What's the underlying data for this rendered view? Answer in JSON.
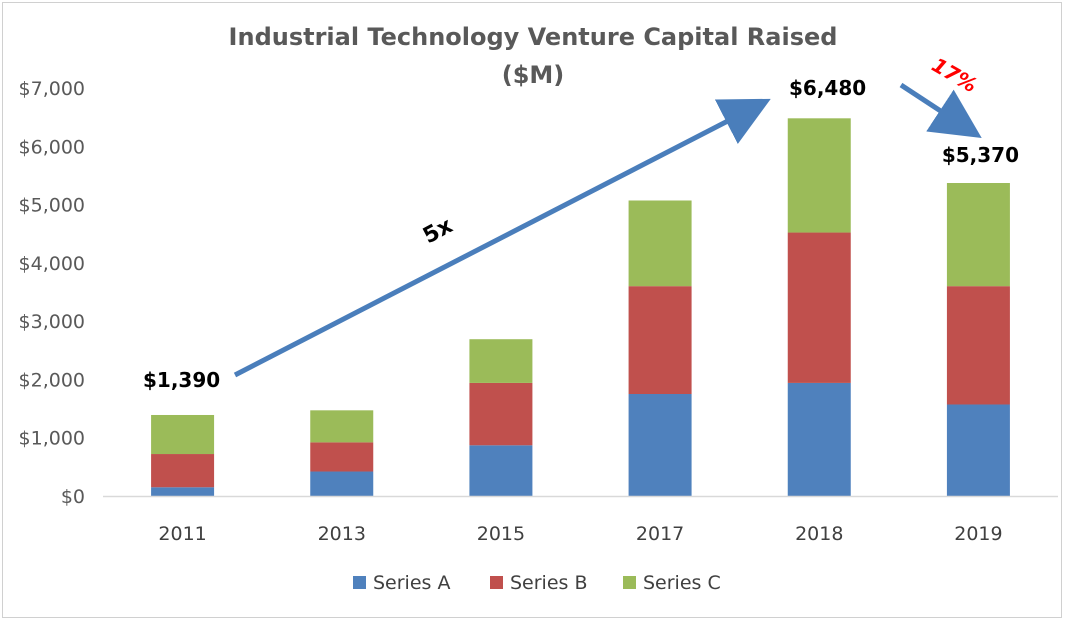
{
  "chart_data": {
    "type": "bar",
    "stacked": true,
    "title": "Industrial Technology Venture Capital Raised",
    "subtitle": "($M)",
    "xlabel": "",
    "ylabel": "",
    "categories": [
      "2011",
      "2013",
      "2015",
      "2017",
      "2018",
      "2019"
    ],
    "ylim": [
      0,
      7000
    ],
    "yticks": [
      0,
      1000,
      2000,
      3000,
      4000,
      5000,
      6000,
      7000
    ],
    "ytick_labels": [
      "$0",
      "$1,000",
      "$2,000",
      "$3,000",
      "$4,000",
      "$5,000",
      "$6,000",
      "$7,000"
    ],
    "grid": false,
    "legend_position": "bottom",
    "series": [
      {
        "name": "Series A",
        "color": "#4f81bd",
        "values": [
          150,
          420,
          870,
          1750,
          1940,
          1570
        ]
      },
      {
        "name": "Series B",
        "color": "#c0504d",
        "values": [
          570,
          500,
          1070,
          1850,
          2580,
          2030
        ]
      },
      {
        "name": "Series C",
        "color": "#9bbb59",
        "values": [
          670,
          550,
          750,
          1470,
          1960,
          1770
        ]
      }
    ],
    "annotations": {
      "totals": [
        {
          "category": "2011",
          "value": 1390,
          "label": "$1,390"
        },
        {
          "category": "2018",
          "value": 6480,
          "label": "$6,480"
        },
        {
          "category": "2019",
          "value": 5370,
          "label": "$5,370"
        }
      ],
      "growth": {
        "from": "2011",
        "to": "2018",
        "label": "5x",
        "arrow_color": "#4a7ebb"
      },
      "decline": {
        "from": "2018",
        "to": "2019",
        "label": "17%",
        "label_color": "#ff0000",
        "arrow_color": "#4a7ebb"
      }
    }
  }
}
